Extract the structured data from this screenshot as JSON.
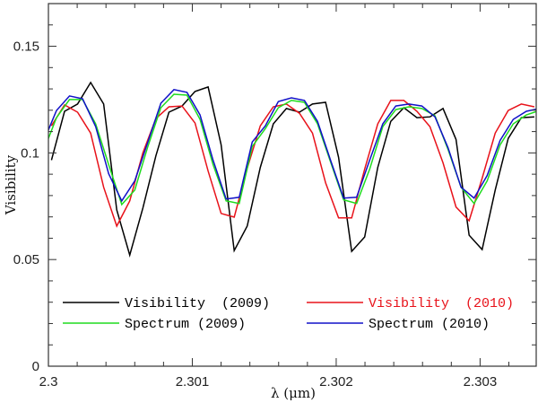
{
  "chart_data": {
    "type": "line",
    "title": "",
    "xlabel": "λ (μm)",
    "ylabel": "Visibility",
    "xlim": [
      2.3,
      2.30339
    ],
    "ylim": [
      0,
      0.17
    ],
    "grid": false,
    "legend_placement": "bottom",
    "x_ticks": [
      2.3,
      2.301,
      2.302,
      2.303
    ],
    "x_tick_labels": [
      "2.3",
      "2.301",
      "2.302",
      "2.303"
    ],
    "y_ticks": [
      0,
      0.05,
      0.1,
      0.15
    ],
    "y_tick_labels": [
      "0",
      "0.05",
      "0.1",
      "0.15"
    ],
    "series": [
      {
        "name": "Visibility  (2009)",
        "color": "#000000",
        "label_color": "#000000",
        "x0": 2.3000213,
        "dx": 9.07e-05,
        "values": [
          0.0966,
          0.1195,
          0.1229,
          0.133,
          0.1229,
          0.0733,
          0.0521,
          0.0741,
          0.0987,
          0.1191,
          0.122,
          0.1288,
          0.1309,
          0.1038,
          0.0542,
          0.0657,
          0.0932,
          0.1136,
          0.1208,
          0.1191,
          0.1229,
          0.1237,
          0.0979,
          0.0538,
          0.0606,
          0.0932,
          0.1148,
          0.1212,
          0.1165,
          0.1169,
          0.1208,
          0.1063,
          0.0614,
          0.0547,
          0.0826,
          0.1068,
          0.1165,
          0.1169
        ]
      },
      {
        "name": "Visibility  (2010)",
        "color": "#e8121a",
        "label_color": "#e8121a",
        "x0": 2.3000213,
        "dx": 9.07e-05,
        "values": [
          0.1127,
          0.1225,
          0.1191,
          0.1093,
          0.0839,
          0.0657,
          0.0775,
          0.1,
          0.1161,
          0.1216,
          0.122,
          0.114,
          0.0915,
          0.0716,
          0.0699,
          0.0928,
          0.1127,
          0.1216,
          0.1229,
          0.1186,
          0.1093,
          0.086,
          0.0695,
          0.0695,
          0.0924,
          0.1136,
          0.1246,
          0.1246,
          0.1195,
          0.1123,
          0.0953,
          0.0746,
          0.0682,
          0.0881,
          0.1093,
          0.1199,
          0.1229,
          0.1216
        ]
      },
      {
        "name": "Spectrum (2009)",
        "color": "#1fdc1f",
        "label_color": "#000000",
        "x0": 2.2999653,
        "dx": 9.07e-05,
        "values": [
          0.1008,
          0.1165,
          0.125,
          0.125,
          0.1136,
          0.0945,
          0.0758,
          0.0826,
          0.103,
          0.1212,
          0.1275,
          0.1271,
          0.1157,
          0.0945,
          0.0775,
          0.0763,
          0.103,
          0.1114,
          0.1212,
          0.1246,
          0.1237,
          0.1136,
          0.0958,
          0.078,
          0.0763,
          0.0924,
          0.1123,
          0.1203,
          0.1216,
          0.1208,
          0.1174,
          0.1017,
          0.0839,
          0.0763,
          0.0869,
          0.1038,
          0.1136,
          0.1178,
          0.1199
        ]
      },
      {
        "name": "Spectrum (2010)",
        "color": "#1010c8",
        "label_color": "#000000",
        "x0": 2.2999653,
        "dx": 9.07e-05,
        "values": [
          0.1051,
          0.1199,
          0.1267,
          0.1254,
          0.1123,
          0.0902,
          0.0775,
          0.0869,
          0.1051,
          0.1233,
          0.1297,
          0.1284,
          0.1178,
          0.0966,
          0.0784,
          0.0792,
          0.1051,
          0.1127,
          0.1241,
          0.1258,
          0.1246,
          0.1148,
          0.0966,
          0.0788,
          0.0792,
          0.0966,
          0.1136,
          0.122,
          0.1229,
          0.122,
          0.1169,
          0.1025,
          0.0839,
          0.0788,
          0.0894,
          0.1059,
          0.1157,
          0.1195,
          0.1208
        ]
      }
    ]
  }
}
